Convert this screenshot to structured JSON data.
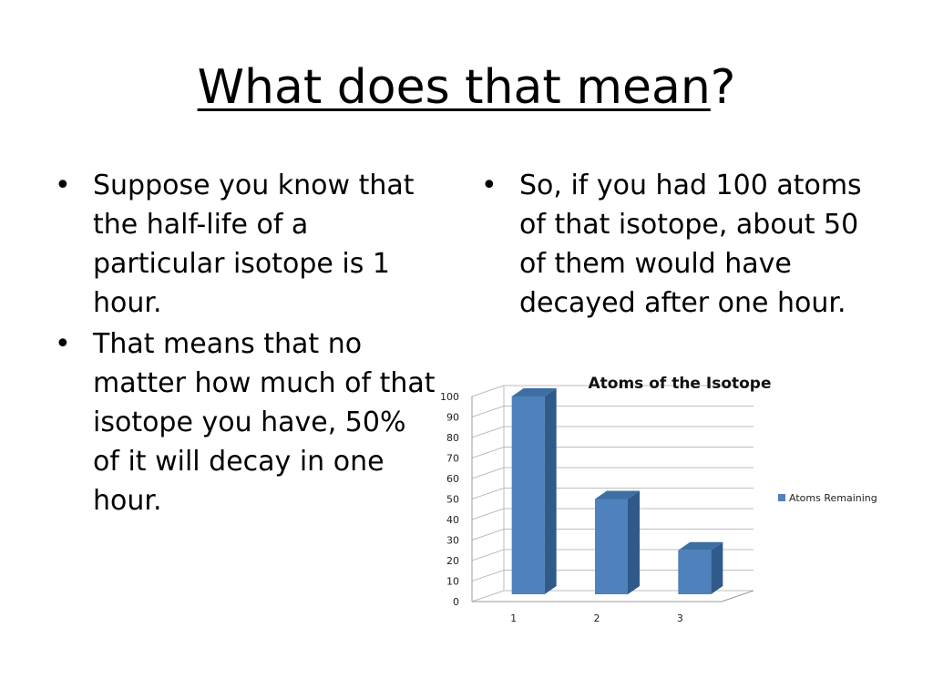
{
  "slide": {
    "title_main": "What does that mean",
    "title_tail": "?",
    "left_bullets": [
      "Suppose you know that the half-life of a particular isotope is 1 hour.",
      "That means that no matter how much of that isotope you have, 50% of it will decay in one hour."
    ],
    "right_bullets": [
      "So, if you had 100 atoms of that isotope, about 50 of them would have decayed after one hour."
    ],
    "bullet_glyph": "•"
  },
  "chart_data": {
    "type": "bar",
    "style": "3d-column",
    "title": "Atoms of the Isotope",
    "categories": [
      "1",
      "2",
      "3"
    ],
    "series": [
      {
        "name": "Atoms Remaining",
        "values": [
          100,
          50,
          25
        ],
        "color": "#4F81BD"
      }
    ],
    "ylim": [
      0,
      100
    ],
    "yticks": [
      0,
      10,
      20,
      30,
      40,
      50,
      60,
      70,
      80,
      90,
      100
    ],
    "xlabel": "",
    "ylabel": "",
    "grid": true,
    "legend": "right"
  }
}
